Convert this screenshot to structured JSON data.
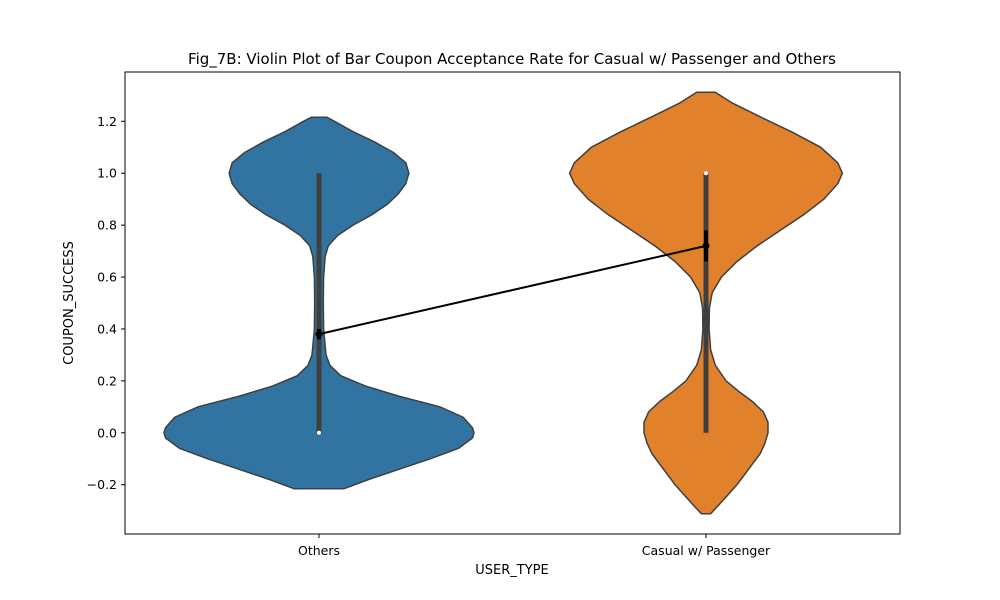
{
  "chart_data": {
    "type": "violin",
    "title": "Fig_7B: Violin Plot of Bar Coupon Acceptance Rate for Casual w/ Passenger and Others",
    "xlabel": "USER_TYPE",
    "ylabel": "COUPON_SUCCESS",
    "categories": [
      "Others",
      "Casual w/ Passenger"
    ],
    "ylim": [
      -0.39,
      1.39
    ],
    "y_ticks": [
      -0.2,
      0.0,
      0.2,
      0.4,
      0.6,
      0.8,
      1.0,
      1.2
    ],
    "y_tick_labels": [
      "−0.2",
      "0.0",
      "0.2",
      "0.4",
      "0.6",
      "0.8",
      "1.0",
      "1.2"
    ],
    "grid": false,
    "violins": [
      {
        "category": "Others",
        "color": "#3274a1",
        "y_range": [
          -0.216,
          1.216
        ],
        "density_profile": [
          [
            -0.216,
            0.16
          ],
          [
            -0.18,
            0.32
          ],
          [
            -0.14,
            0.52
          ],
          [
            -0.1,
            0.72
          ],
          [
            -0.06,
            0.9
          ],
          [
            -0.02,
            0.99
          ],
          [
            0.0,
            1.0
          ],
          [
            0.02,
            0.99
          ],
          [
            0.06,
            0.93
          ],
          [
            0.1,
            0.78
          ],
          [
            0.14,
            0.52
          ],
          [
            0.18,
            0.3
          ],
          [
            0.22,
            0.14
          ],
          [
            0.26,
            0.07
          ],
          [
            0.3,
            0.045
          ],
          [
            0.4,
            0.03
          ],
          [
            0.5,
            0.028
          ],
          [
            0.6,
            0.03
          ],
          [
            0.68,
            0.04
          ],
          [
            0.72,
            0.06
          ],
          [
            0.76,
            0.12
          ],
          [
            0.8,
            0.22
          ],
          [
            0.84,
            0.34
          ],
          [
            0.88,
            0.44
          ],
          [
            0.92,
            0.51
          ],
          [
            0.96,
            0.56
          ],
          [
            1.0,
            0.58
          ],
          [
            1.04,
            0.56
          ],
          [
            1.08,
            0.48
          ],
          [
            1.12,
            0.36
          ],
          [
            1.16,
            0.22
          ],
          [
            1.2,
            0.1
          ],
          [
            1.216,
            0.05
          ]
        ],
        "quartiles": [
          0.0,
          0.0,
          1.0
        ],
        "whiskers": [
          0.0,
          1.0
        ],
        "mean": 0.38,
        "ci": [
          0.36,
          0.4
        ]
      },
      {
        "category": "Casual w/ Passenger",
        "color": "#e1812c",
        "y_range": [
          -0.312,
          1.312
        ],
        "density_profile": [
          [
            -0.312,
            0.03
          ],
          [
            -0.28,
            0.08
          ],
          [
            -0.24,
            0.14
          ],
          [
            -0.2,
            0.2
          ],
          [
            -0.16,
            0.25
          ],
          [
            -0.12,
            0.3
          ],
          [
            -0.08,
            0.35
          ],
          [
            -0.04,
            0.38
          ],
          [
            0.0,
            0.4
          ],
          [
            0.04,
            0.4
          ],
          [
            0.08,
            0.37
          ],
          [
            0.12,
            0.3
          ],
          [
            0.16,
            0.21
          ],
          [
            0.2,
            0.13
          ],
          [
            0.26,
            0.06
          ],
          [
            0.32,
            0.03
          ],
          [
            0.4,
            0.02
          ],
          [
            0.48,
            0.022
          ],
          [
            0.54,
            0.04
          ],
          [
            0.6,
            0.1
          ],
          [
            0.66,
            0.2
          ],
          [
            0.72,
            0.33
          ],
          [
            0.78,
            0.48
          ],
          [
            0.84,
            0.63
          ],
          [
            0.9,
            0.76
          ],
          [
            0.96,
            0.85
          ],
          [
            1.0,
            0.88
          ],
          [
            1.04,
            0.85
          ],
          [
            1.1,
            0.74
          ],
          [
            1.16,
            0.55
          ],
          [
            1.22,
            0.34
          ],
          [
            1.27,
            0.17
          ],
          [
            1.312,
            0.06
          ]
        ],
        "quartiles": [
          0.0,
          1.0,
          1.0
        ],
        "whiskers": [
          0.0,
          1.0
        ],
        "mean": 0.72,
        "ci": [
          0.66,
          0.78
        ]
      }
    ],
    "point_line": {
      "color": "#000000",
      "values": [
        0.38,
        0.72
      ]
    }
  }
}
